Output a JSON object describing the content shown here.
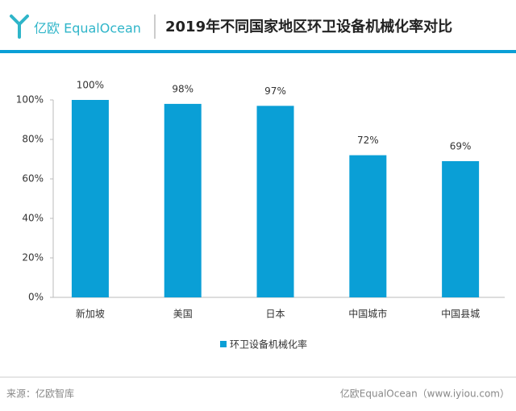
{
  "header": {
    "logo": "亿欧 EqualOcean",
    "title": "2019年不同国家地区环卫设备机械化率对比"
  },
  "chart_data": {
    "type": "bar",
    "categories": [
      "新加坡",
      "美国",
      "日本",
      "中国城市",
      "中国县城"
    ],
    "series": [
      {
        "name": "环卫设备机械化率",
        "color": "#0a9fd6",
        "values": [
          100,
          98,
          97,
          72,
          69
        ],
        "value_labels": [
          "100%",
          "98%",
          "97%",
          "72%",
          "69%"
        ]
      }
    ],
    "ylim": [
      0,
      100
    ],
    "yticks": [
      {
        "value": 0,
        "label": "0%"
      },
      {
        "value": 20,
        "label": "20%"
      },
      {
        "value": 40,
        "label": "40%"
      },
      {
        "value": 60,
        "label": "60%"
      },
      {
        "value": 80,
        "label": "80%"
      },
      {
        "value": 100,
        "label": "100%"
      }
    ],
    "grid": false,
    "legend": "bottom"
  },
  "footer": {
    "source": "来源：亿欧智库",
    "credit": "亿欧EqualOcean（www.iyiou.com）"
  }
}
